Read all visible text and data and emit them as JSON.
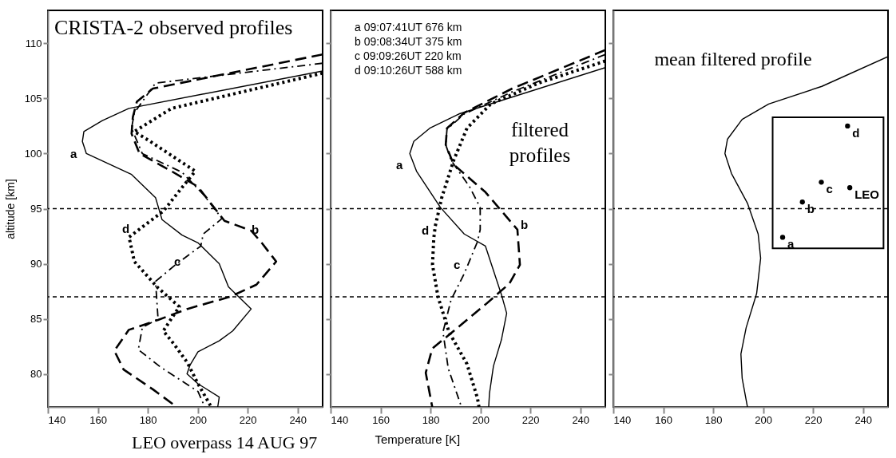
{
  "chart_data": [
    {
      "type": "line",
      "title": "CRISTA-2 observed profiles",
      "ylabel": "altitude [km]",
      "xlim": [
        140,
        250
      ],
      "ylim": [
        77,
        113
      ],
      "xticks": [
        140,
        160,
        180,
        200,
        220,
        240
      ],
      "yticks": [
        80,
        85,
        90,
        95,
        100,
        105,
        110
      ],
      "grid": false,
      "ref_lines": [
        {
          "axis": "y",
          "value": 95,
          "line_style": "dotted",
          "color": "#000000"
        },
        {
          "axis": "y",
          "value": 87,
          "line_style": "dotted",
          "color": "#000000"
        }
      ],
      "series": [
        {
          "color": "#000000",
          "line_style": "solid",
          "x": [
            250,
            172.4,
            161.8,
            154.4,
            153.8,
            155.4,
            173.5,
            183.1,
            185.7,
            193.7,
            200.1,
            208.6,
            212.3,
            221.4,
            214,
            208.6,
            200.1,
            196.9,
            195.7,
            200.1,
            208.6,
            208
          ],
          "values": [
            107.5,
            104.1,
            103.0,
            102.0,
            101.1,
            100.0,
            98.1,
            96.0,
            94.0,
            92.6,
            91.9,
            90.0,
            87.9,
            85.9,
            83.9,
            83.0,
            82.0,
            80.8,
            80.0,
            79.1,
            77.9,
            77.0
          ]
        },
        {
          "color": "#000000",
          "line_style": "dashed",
          "x": [
            250,
            182,
            175.6,
            174,
            173.5,
            176.7,
            189.5,
            200,
            210.7,
            221.4,
            225.6,
            231.4,
            223.5,
            212.9,
            195.9,
            184.1,
            172.4,
            166.6,
            170.3,
            182,
            191.6
          ],
          "values": [
            109.0,
            105.9,
            104.7,
            103.3,
            101.8,
            100.0,
            98.4,
            97.0,
            93.9,
            93.0,
            91.9,
            90.2,
            88.1,
            87.0,
            85.9,
            84.9,
            84.0,
            82.1,
            80.4,
            78.6,
            77.0
          ]
        },
        {
          "color": "#000000",
          "line_style": "dashdot",
          "x": [
            250,
            183.1,
            174.6,
            173.5,
            177.8,
            193.7,
            202.2,
            209.7,
            202.2,
            201.2,
            191.6,
            183.1,
            184.1,
            177.8,
            176.2,
            185.2,
            200.1,
            202.8
          ],
          "values": [
            108.2,
            106.4,
            103.7,
            102.3,
            100.0,
            98.3,
            96.3,
            94.1,
            92.7,
            91.6,
            90.0,
            88.4,
            85.0,
            84.2,
            82.2,
            80.6,
            78.4,
            77.0
          ]
        },
        {
          "color": "#000000",
          "line_style": "dotted",
          "x": [
            250,
            189.5,
            174.6,
            181,
            199,
            194.7,
            186.3,
            172.4,
            172.9,
            174.6,
            184.1,
            192.6,
            186.2,
            190.5,
            195.9,
            200.1,
            205.4
          ],
          "values": [
            107.3,
            104.1,
            102.0,
            101.1,
            98.4,
            97.2,
            94.8,
            92.4,
            92.0,
            90.2,
            87.8,
            86.1,
            83.9,
            82.7,
            81.0,
            79.1,
            77.0
          ]
        }
      ],
      "annotations": [
        "a",
        "b",
        "c",
        "d",
        "LEO overpass 14 AUG 97"
      ]
    },
    {
      "type": "line",
      "title": "filtered profiles",
      "xlabel": "Temperature [K]",
      "xlim": [
        140,
        250
      ],
      "ylim": [
        77,
        113
      ],
      "tick_labels": "x",
      "xticks": [
        140,
        160,
        180,
        200,
        220,
        240
      ],
      "yticks": [
        80,
        85,
        90,
        95,
        100,
        105,
        110
      ],
      "grid": false,
      "ref_lines": [
        {
          "axis": "y",
          "value": 95,
          "line_style": "dotted",
          "color": "#000000"
        },
        {
          "axis": "y",
          "value": 87,
          "line_style": "dotted",
          "color": "#000000"
        }
      ],
      "series": [
        {
          "color": "#000000",
          "line_style": "solid",
          "x": [
            250,
            191.4,
            179.7,
            173.3,
            171.7,
            174.4,
            184,
            193.5,
            202,
            208.4,
            210.5,
            208.4,
            205.2,
            203.6,
            203.3
          ],
          "values": [
            107.8,
            103.6,
            102.3,
            101.1,
            100.0,
            98.4,
            95.1,
            92.7,
            91.6,
            87.2,
            85.5,
            83.1,
            80.7,
            78.2,
            77.0
          ]
        },
        {
          "color": "#000000",
          "line_style": "dashed",
          "x": [
            250,
            212.7,
            193.5,
            186.6,
            186.1,
            189.3,
            202,
            214.8,
            215.3,
            215.8,
            211.6,
            202,
            189.3,
            180.7,
            178.1,
            180.7
          ],
          "values": [
            109.4,
            105.9,
            103.7,
            102.3,
            100.8,
            99.0,
            96.5,
            93.1,
            91.5,
            89.9,
            88.2,
            86.3,
            83.9,
            82.3,
            80.1,
            77.0
          ]
        },
        {
          "color": "#000000",
          "line_style": "dashdot",
          "x": [
            250,
            212.7,
            193.5,
            186.6,
            186.1,
            188.2,
            195.6,
            199.9,
            199.9,
            198.8,
            193.5,
            188.2,
            185,
            187.1,
            192.4
          ],
          "values": [
            109.0,
            105.6,
            103.6,
            102.2,
            100.8,
            99.4,
            97.0,
            95.1,
            93.1,
            92.0,
            89.1,
            86.7,
            83.8,
            80.5,
            77.0
          ]
        },
        {
          "color": "#000000",
          "line_style": "dotted",
          "x": [
            250,
            223.3,
            204.1,
            194.6,
            189.3,
            184.5,
            181.9,
            181.3,
            180.8,
            183,
            187.4,
            194.6,
            198.8,
            199.4
          ],
          "values": [
            108.4,
            106.4,
            104.5,
            102.3,
            99.4,
            96.0,
            93.4,
            92.3,
            89.9,
            87.0,
            83.8,
            80.9,
            77.8,
            77.0
          ]
        }
      ],
      "annotations": [
        "a",
        "b",
        "c",
        "d",
        "a 09:07:41UT  676 km",
        "b 09:08:34UT  375 km",
        "c 09:09:26UT  220 km",
        "d 09:10:26UT  588 km"
      ]
    },
    {
      "type": "line",
      "title": "mean filtered profile",
      "xlim": [
        140,
        250
      ],
      "ylim": [
        77,
        113
      ],
      "tick_labels": "x",
      "xticks": [
        140,
        160,
        180,
        200,
        220,
        240
      ],
      "yticks": [
        80,
        85,
        90,
        95,
        100,
        105,
        110
      ],
      "grid": false,
      "ref_lines": [
        {
          "axis": "y",
          "value": 95,
          "line_style": "dotted",
          "color": "#000000"
        },
        {
          "axis": "y",
          "value": 87,
          "line_style": "dotted",
          "color": "#000000"
        }
      ],
      "series": [
        {
          "color": "#000000",
          "line_style": "solid",
          "x": [
            250,
            223.5,
            202.2,
            191.6,
            185.7,
            184.7,
            187.3,
            193.7,
            198,
            199,
            197.4,
            193.2,
            191.1,
            191.6,
            193.7
          ],
          "values": [
            108.8,
            106.1,
            104.5,
            103.1,
            101.3,
            100.0,
            98.2,
            95.5,
            92.7,
            90.5,
            87.3,
            84.2,
            81.8,
            79.6,
            77.0
          ]
        },
        {
          "type": "scatter",
          "marker": "circle",
          "color": "#000000",
          "x": [
            207.8,
            215.7,
            223.3,
            234.7,
            233.8
          ],
          "values": [
            92.4,
            95.6,
            97.4,
            96.9,
            102.5
          ],
          "value_labels": [
            "a",
            "b",
            "c",
            "LEO",
            "d"
          ]
        }
      ]
    }
  ]
}
